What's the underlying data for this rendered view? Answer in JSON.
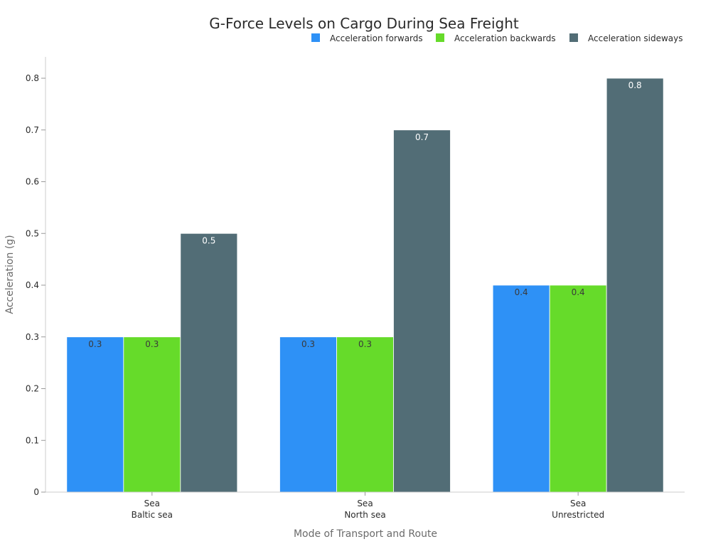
{
  "chart_data": {
    "type": "bar",
    "title": "G-Force Levels on Cargo During Sea Freight",
    "xlabel": "Mode of Transport and Route",
    "ylabel": "Acceleration (g)",
    "ylim": [
      0,
      0.84
    ],
    "yticks": [
      {
        "value": 0,
        "label": "0"
      },
      {
        "value": 0.1,
        "label": "0.1"
      },
      {
        "value": 0.2,
        "label": "0.2"
      },
      {
        "value": 0.3,
        "label": "0.3"
      },
      {
        "value": 0.4,
        "label": "0.4"
      },
      {
        "value": 0.5,
        "label": "0.5"
      },
      {
        "value": 0.6,
        "label": "0.6"
      },
      {
        "value": 0.7,
        "label": "0.7"
      },
      {
        "value": 0.8,
        "label": "0.8"
      }
    ],
    "categories": [
      {
        "line1": "Sea",
        "line2": "Baltic sea"
      },
      {
        "line1": "Sea",
        "line2": "North sea"
      },
      {
        "line1": "Sea",
        "line2": "Unrestricted"
      }
    ],
    "series": [
      {
        "name": "Acceleration forwards",
        "color": "#2e91f6",
        "label_color": "#3a3a3a",
        "values": [
          0.3,
          0.3,
          0.4
        ],
        "labels": [
          "0.3",
          "0.3",
          "0.4"
        ]
      },
      {
        "name": "Acceleration backwards",
        "color": "#66db2a",
        "label_color": "#3a3a3a",
        "values": [
          0.3,
          0.3,
          0.4
        ],
        "labels": [
          "0.3",
          "0.3",
          "0.4"
        ]
      },
      {
        "name": "Acceleration sideways",
        "color": "#526d76",
        "label_color": "#ffffff",
        "values": [
          0.5,
          0.7,
          0.8
        ],
        "labels": [
          "0.5",
          "0.7",
          "0.8"
        ]
      }
    ],
    "legend_position": "top-right",
    "grid": false
  }
}
